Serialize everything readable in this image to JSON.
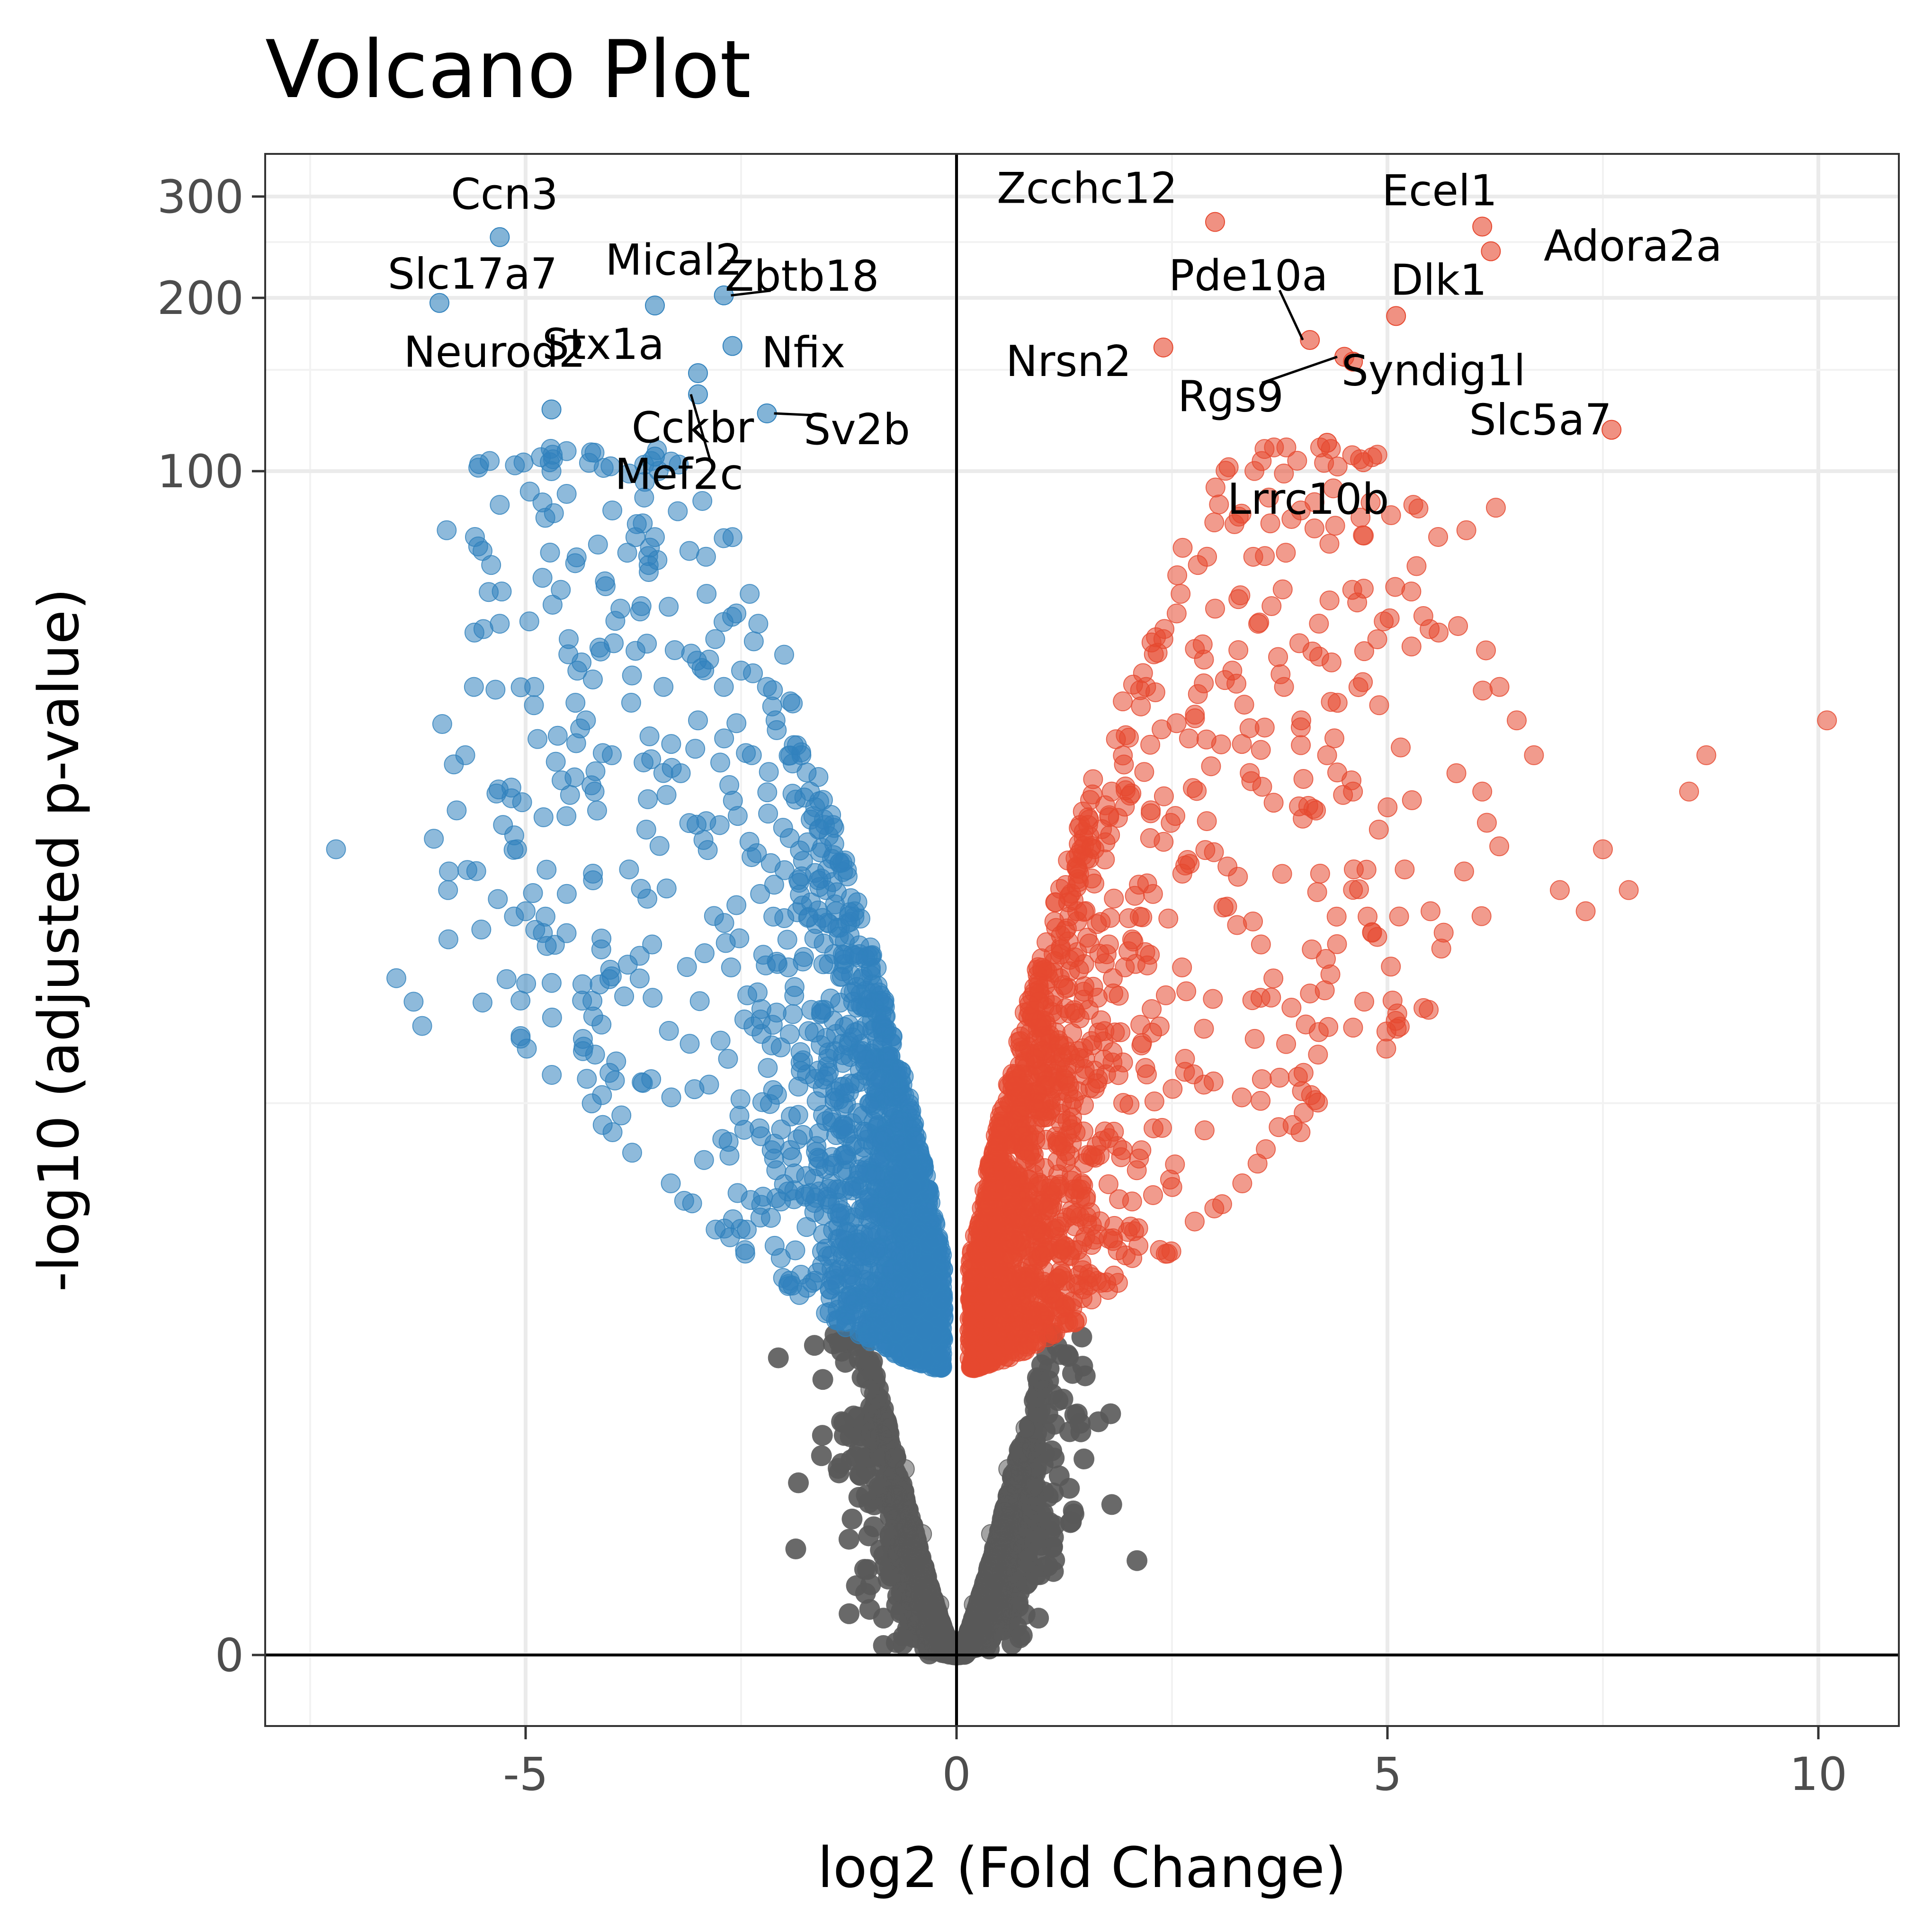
{
  "chart_data": {
    "type": "scatter",
    "title": "Volcano Plot",
    "xlabel": "log2 (Fold Change)",
    "ylabel": "-log10 (adjusted p-value)",
    "xlim": [
      -8.1,
      10.9
    ],
    "x_ticks": [
      -5,
      0,
      5,
      10
    ],
    "x_tick_labels": [
      "-5",
      "0",
      "5",
      "10"
    ],
    "y_scale": "pseudo-log (asinh-like, compresses high values)",
    "y_ticks": [
      0,
      100,
      200,
      300
    ],
    "y_tick_labels": [
      "0",
      "100",
      "200",
      "300"
    ],
    "grid": true,
    "legend": "none",
    "reference_lines": {
      "x": 0,
      "y": 0
    },
    "colors": {
      "down": "#3182bd",
      "up": "#e6482f",
      "not_significant": "#595959"
    },
    "labeled_genes": [
      {
        "name": "Ccn3",
        "x": -5.3,
        "y": 255,
        "group": "down"
      },
      {
        "name": "Slc17a7",
        "x": -6.0,
        "y": 196,
        "group": "down"
      },
      {
        "name": "Neurod2",
        "x": -4.7,
        "y": 128,
        "group": "down"
      },
      {
        "name": "Cckbr",
        "x": -3.5,
        "y": 106,
        "group": "down"
      },
      {
        "name": "Mical2",
        "x": -3.5,
        "y": 194,
        "group": "down"
      },
      {
        "name": "Zbtb18",
        "x": -2.7,
        "y": 202,
        "group": "down"
      },
      {
        "name": "Nfix",
        "x": -2.6,
        "y": 165,
        "group": "down"
      },
      {
        "name": "Stx1a",
        "x": -3.0,
        "y": 148,
        "group": "down"
      },
      {
        "name": "Mef2c",
        "x": -3.0,
        "y": 136,
        "group": "down"
      },
      {
        "name": "Sv2b",
        "x": -2.2,
        "y": 126,
        "group": "down"
      },
      {
        "name": "Zcchc12",
        "x": 3.0,
        "y": 271,
        "group": "up"
      },
      {
        "name": "Ecel1",
        "x": 6.1,
        "y": 266,
        "group": "up"
      },
      {
        "name": "Adora2a",
        "x": 6.2,
        "y": 241,
        "group": "up"
      },
      {
        "name": "Pde10a",
        "x": 4.1,
        "y": 169,
        "group": "up"
      },
      {
        "name": "Dlk1",
        "x": 5.1,
        "y": 186,
        "group": "up"
      },
      {
        "name": "Nrsn2",
        "x": 2.4,
        "y": 164,
        "group": "up"
      },
      {
        "name": "Syndig1l",
        "x": 4.6,
        "y": 155,
        "group": "up"
      },
      {
        "name": "Rgs9",
        "x": 4.5,
        "y": 158,
        "group": "up"
      },
      {
        "name": "Slc5a7",
        "x": 7.6,
        "y": 118,
        "group": "up"
      },
      {
        "name": "Lrrc10b",
        "x": 4.3,
        "y": 112,
        "group": "up"
      }
    ],
    "series": [
      {
        "group": "down",
        "description": "significantly down-regulated genes (log2FC < 0)",
        "x": [
          -7.2,
          -6.5,
          -6.3,
          -6.2,
          -5.9,
          -5.8,
          -5.7,
          -5.6,
          -5.5,
          -5.4,
          -5.3,
          -5.1,
          -5.0,
          -4.9,
          -4.8,
          -4.7,
          -4.5,
          -4.4,
          -4.3,
          -4.2,
          -4.0,
          -3.9,
          -3.8,
          -3.6,
          -3.5,
          -3.4,
          -3.2,
          -3.1,
          -3.0,
          -2.9,
          -2.8,
          -2.7,
          -2.6,
          -2.5,
          -2.4,
          -2.3,
          -2.2,
          -2.1,
          -2.0,
          -1.9,
          -1.8,
          -1.7,
          -1.6,
          -1.5,
          -1.4,
          -1.3,
          -1.2,
          -1.1,
          -1.0,
          -0.9,
          -0.8,
          -0.7,
          -0.6,
          -0.5
        ],
        "y": [
          52,
          40,
          38,
          36,
          48,
          56,
          62,
          70,
          88,
          86,
          78,
          52,
          46,
          70,
          44,
          100,
          76,
          72,
          66,
          58,
          62,
          80,
          50,
          54,
          90,
          70,
          60,
          88,
          66,
          82,
          76,
          70,
          90,
          72,
          82,
          78,
          70,
          66,
          74,
          68,
          62,
          58,
          54,
          50,
          46,
          42,
          38,
          34,
          30,
          26,
          22,
          18,
          16,
          14
        ]
      },
      {
        "group": "up",
        "description": "significantly up-regulated genes (log2FC > 0)",
        "x": [
          0.5,
          0.6,
          0.7,
          0.8,
          0.9,
          1.0,
          1.2,
          1.4,
          1.6,
          1.8,
          2.0,
          2.2,
          2.4,
          2.6,
          2.8,
          3.0,
          3.2,
          3.5,
          3.8,
          4.0,
          4.3,
          4.6,
          4.9,
          5.2,
          5.5,
          5.8,
          6.1,
          6.3,
          6.5,
          6.7,
          7.0,
          7.3,
          7.5,
          7.8,
          8.5,
          8.7,
          10.1
        ],
        "y": [
          14,
          18,
          22,
          26,
          30,
          34,
          40,
          46,
          52,
          58,
          64,
          70,
          76,
          82,
          86,
          80,
          72,
          78,
          70,
          66,
          62,
          58,
          54,
          50,
          46,
          60,
          58,
          70,
          66,
          62,
          48,
          46,
          52,
          48,
          58,
          62,
          66
        ]
      },
      {
        "group": "not_significant",
        "description": "non-significant genes forming the grey base near x=0",
        "x": [
          -1.0,
          -0.8,
          -0.6,
          -0.4,
          -0.2,
          0.0,
          0.2,
          0.4,
          0.6,
          0.8,
          1.0
        ],
        "y": [
          12,
          10,
          8,
          5,
          2,
          0,
          2,
          5,
          8,
          10,
          12
        ]
      }
    ]
  }
}
